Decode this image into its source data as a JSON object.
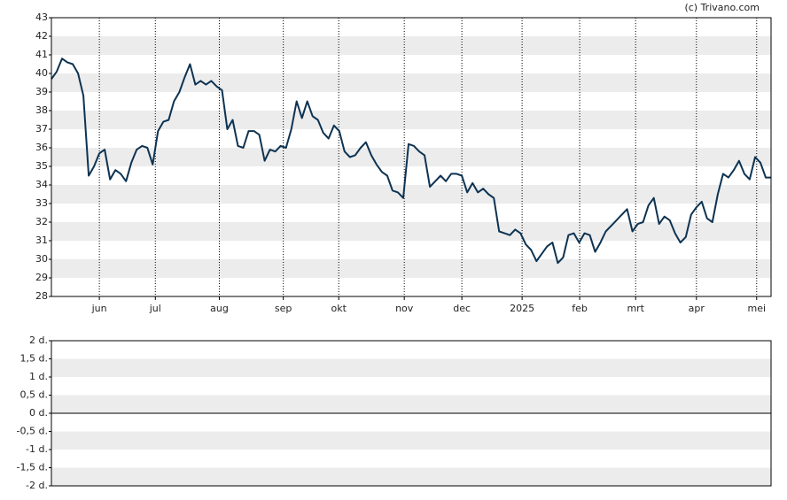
{
  "chart_data": [
    {
      "type": "line",
      "annotation": "(c) Trivano.com",
      "x": [
        0,
        1,
        2,
        3,
        4,
        5,
        6,
        7,
        8,
        9,
        10,
        11,
        12,
        13,
        14,
        15,
        16,
        17,
        18,
        19,
        20,
        21,
        22,
        23,
        24,
        25,
        26,
        27,
        28,
        29,
        30,
        31,
        32,
        33,
        34,
        35,
        36,
        37,
        38,
        39,
        40,
        41,
        42,
        43,
        44,
        45,
        46,
        47,
        48,
        49,
        50,
        51,
        52,
        53,
        54,
        55,
        56,
        57,
        58,
        59,
        60,
        61,
        62,
        63,
        64,
        65,
        66,
        67,
        68,
        69,
        70,
        71,
        72,
        73,
        74,
        75,
        76,
        77,
        78,
        79,
        80,
        81,
        82,
        83,
        84,
        85,
        86,
        87,
        88,
        89,
        90,
        91,
        92,
        93,
        94,
        95,
        96,
        97,
        98,
        99,
        100,
        101,
        102,
        103,
        104,
        105,
        106,
        107,
        108,
        109,
        110,
        111,
        112,
        113,
        114,
        115,
        116,
        117,
        118,
        119,
        120,
        121,
        122,
        123,
        124,
        125,
        126,
        127,
        128,
        129,
        130,
        131,
        132,
        133,
        134,
        135
      ],
      "series": [
        {
          "color": "#0d3352",
          "values": [
            39.7,
            40.1,
            40.8,
            40.6,
            40.5,
            40.0,
            38.8,
            34.5,
            35.0,
            35.7,
            35.9,
            34.3,
            34.8,
            34.6,
            34.2,
            35.2,
            35.9,
            36.1,
            36.0,
            35.1,
            36.9,
            37.4,
            37.5,
            38.5,
            39.0,
            39.8,
            40.5,
            39.4,
            39.6,
            39.4,
            39.6,
            39.3,
            39.1,
            37.0,
            37.5,
            36.1,
            36.0,
            36.9,
            36.9,
            36.7,
            35.3,
            35.9,
            35.8,
            36.1,
            36.0,
            37.0,
            38.5,
            37.6,
            38.5,
            37.7,
            37.5,
            36.8,
            36.5,
            37.2,
            36.9,
            35.8,
            35.5,
            35.6,
            36.0,
            36.3,
            35.6,
            35.1,
            34.7,
            34.5,
            33.7,
            33.6,
            33.3,
            36.2,
            36.1,
            35.8,
            35.6,
            33.9,
            34.2,
            34.5,
            34.2,
            34.6,
            34.6,
            34.5,
            33.6,
            34.1,
            33.6,
            33.8,
            33.5,
            33.3,
            31.5,
            31.4,
            31.3,
            31.6,
            31.4,
            30.8,
            30.5,
            29.9,
            30.3,
            30.7,
            30.9,
            29.8,
            30.1,
            31.3,
            31.4,
            30.9,
            31.4,
            31.3,
            30.4,
            30.9,
            31.5,
            31.8,
            32.1,
            32.4,
            32.7,
            31.5,
            31.9,
            32.0,
            32.9,
            33.3,
            31.9,
            32.3,
            32.1,
            31.4,
            30.9,
            31.2,
            32.4,
            32.8,
            33.1,
            32.2,
            32.0,
            33.5,
            34.6,
            34.4,
            34.8,
            35.3,
            34.6,
            34.3,
            35.5,
            35.2,
            34.4,
            34.4
          ]
        }
      ],
      "xlim": [
        0,
        135
      ],
      "xticks": [
        {
          "value": 9,
          "label": "jun"
        },
        {
          "value": 19.5,
          "label": "jul"
        },
        {
          "value": 31.5,
          "label": "aug"
        },
        {
          "value": 43.5,
          "label": "sep"
        },
        {
          "value": 53.9,
          "label": "okt"
        },
        {
          "value": 66.2,
          "label": "nov"
        },
        {
          "value": 77,
          "label": "dec"
        },
        {
          "value": 88.3,
          "label": "2025"
        },
        {
          "value": 99.1,
          "label": "feb"
        },
        {
          "value": 109.6,
          "label": "mrt"
        },
        {
          "value": 121,
          "label": "apr"
        },
        {
          "value": 132.3,
          "label": "mei"
        }
      ],
      "ylim": [
        28,
        43
      ],
      "yticks": [
        28,
        29,
        30,
        31,
        32,
        33,
        34,
        35,
        36,
        37,
        38,
        39,
        40,
        41,
        42,
        43
      ],
      "grid": true
    },
    {
      "type": "line",
      "ylim": [
        -2,
        2
      ],
      "yticks": [
        {
          "value": 2,
          "label": "2 d."
        },
        {
          "value": 1.5,
          "label": "1,5 d."
        },
        {
          "value": 1,
          "label": "1 d."
        },
        {
          "value": 0.5,
          "label": "0,5 d."
        },
        {
          "value": 0,
          "label": "0 d."
        },
        {
          "value": -0.5,
          "label": "-0,5 d."
        },
        {
          "value": -1,
          "label": "-1 d."
        },
        {
          "value": -1.5,
          "label": "-1,5 d."
        },
        {
          "value": -2,
          "label": "-2 d."
        }
      ],
      "grid": true
    }
  ]
}
